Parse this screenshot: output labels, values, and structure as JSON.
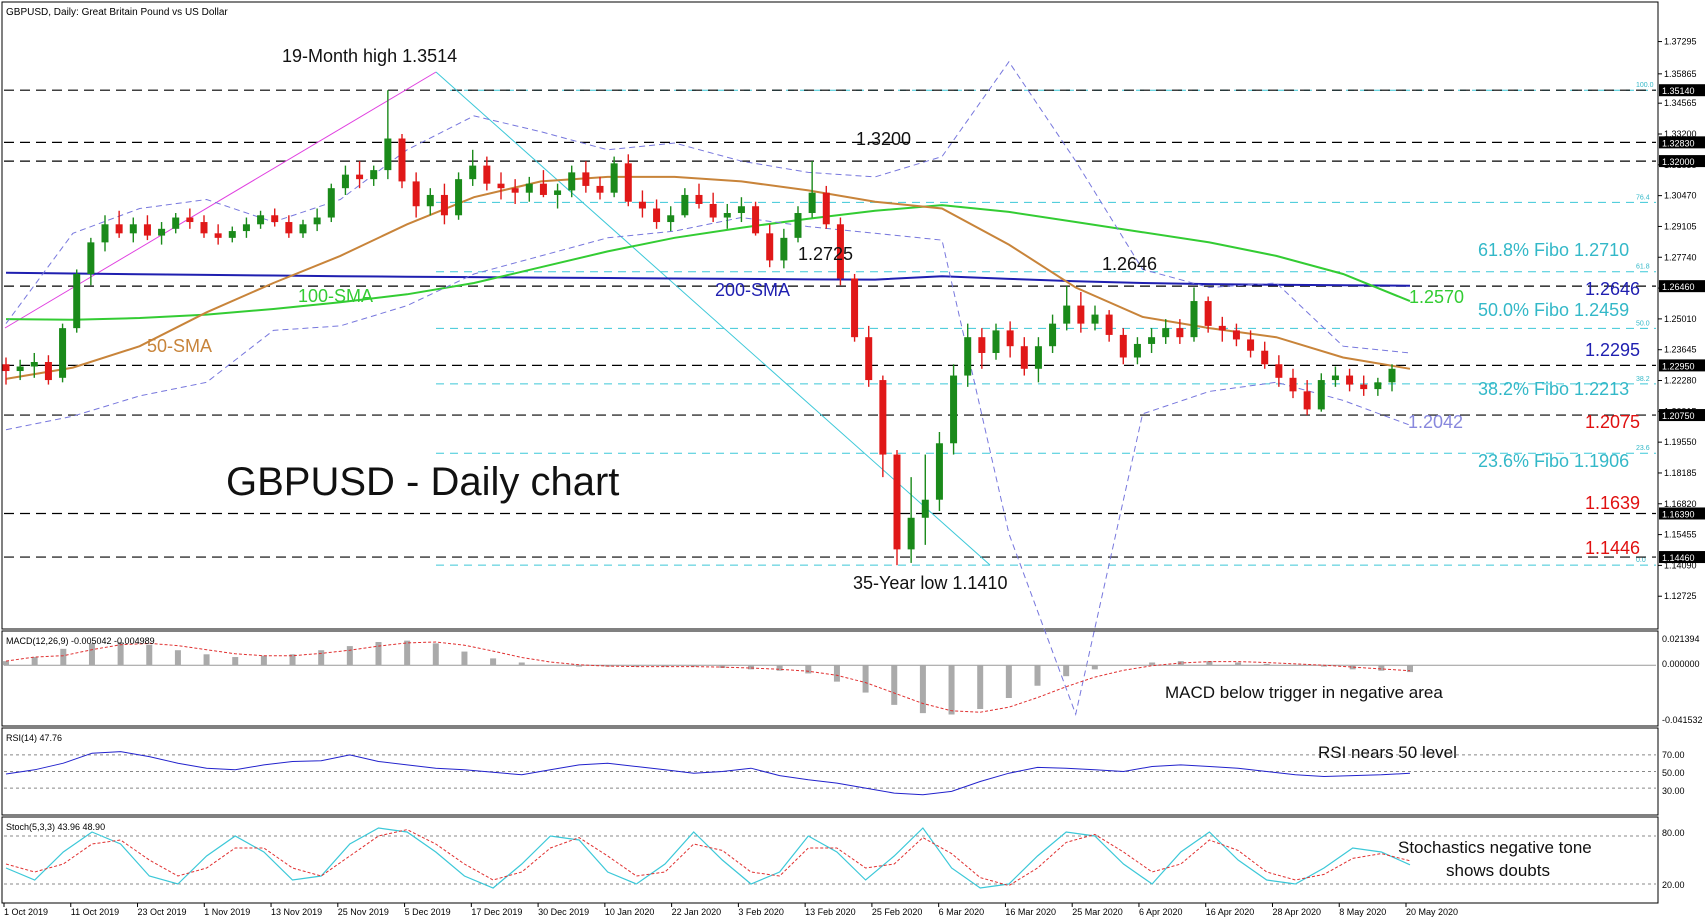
{
  "window": {
    "title": "GBPUSD, Daily:  Great Britain Pound vs US Dollar"
  },
  "chart_data": {
    "type": "line",
    "title": "GBPUSD - Daily chart",
    "xlabel": "",
    "ylabel": "",
    "ylim": [
      1.1145,
      1.3825
    ],
    "grid": false,
    "x_tick_labels": [
      "1 Oct 2019",
      "11 Oct 2019",
      "23 Oct 2019",
      "1 Nov 2019",
      "13 Nov 2019",
      "25 Nov 2019",
      "5 Dec 2019",
      "17 Dec 2019",
      "30 Dec 2019",
      "10 Jan 2020",
      "22 Jan 2020",
      "3 Feb 2020",
      "13 Feb 2020",
      "25 Feb 2020",
      "6 Mar 2020",
      "16 Mar 2020",
      "25 Mar 2020",
      "6 Apr 2020",
      "16 Apr 2020",
      "28 Apr 2020",
      "8 May 2020",
      "20 May 2020"
    ],
    "y_tick_labels": [
      "1.37295",
      "1.35865",
      "1.34565",
      "1.33200",
      "1.31835",
      "1.30470",
      "1.29105",
      "1.27740",
      "1.26375",
      "1.25010",
      "1.23645",
      "1.22280",
      "1.20915",
      "1.19550",
      "1.18185",
      "1.16820",
      "1.15455",
      "1.14090",
      "1.12725"
    ],
    "price_tags": [
      "1.35140",
      "1.32830",
      "1.32000",
      "1.26460",
      "1.22950",
      "1.20750",
      "1.16390",
      "1.14460"
    ],
    "horizontal_levels": [
      1.3514,
      1.3283,
      1.32,
      1.2646,
      1.2295,
      1.2075,
      1.1639,
      1.1446
    ],
    "fibonacci": {
      "levels": [
        {
          "pct": "100.0",
          "value": 1.3514
        },
        {
          "pct": "76.4",
          "value": 1.3017
        },
        {
          "pct": "61.8",
          "value": 1.271
        },
        {
          "pct": "50.0",
          "value": 1.2459
        },
        {
          "pct": "38.2",
          "value": 1.2213
        },
        {
          "pct": "23.6",
          "value": 1.1906
        },
        {
          "pct": "0.0",
          "value": 1.141
        }
      ],
      "tag_texts": [
        "100.0",
        "76.4",
        "61.8",
        "50.0",
        "38.2",
        "23.6",
        "0.0"
      ]
    },
    "series": [
      {
        "name": "200-SMA",
        "color": "#1f1fb0",
        "values": [
          1.2705,
          1.2702,
          1.2699,
          1.2696,
          1.2693,
          1.269,
          1.2688,
          1.2686,
          1.2684,
          1.2682,
          1.268,
          1.2678,
          1.2676,
          1.2675,
          1.269,
          1.2678,
          1.2668,
          1.266,
          1.2655,
          1.2652,
          1.265,
          1.2648
        ]
      },
      {
        "name": "100-SMA",
        "color": "#33cc33",
        "values": [
          1.25,
          1.2497,
          1.2505,
          1.252,
          1.2545,
          1.2575,
          1.261,
          1.266,
          1.273,
          1.28,
          1.286,
          1.2905,
          1.2945,
          1.298,
          1.3005,
          1.2975,
          1.293,
          1.2885,
          1.284,
          1.278,
          1.27,
          1.258
        ]
      },
      {
        "name": "50-SMA",
        "color": "#c8843a",
        "values": [
          1.2235,
          1.2285,
          1.238,
          1.253,
          1.266,
          1.278,
          1.292,
          1.304,
          1.311,
          1.313,
          1.313,
          1.311,
          1.307,
          1.302,
          1.299,
          1.283,
          1.264,
          1.251,
          1.246,
          1.242,
          1.233,
          1.228
        ]
      },
      {
        "name": "Bollinger upper",
        "color": "#7777dd",
        "values": [
          1.248,
          1.288,
          1.299,
          1.303,
          1.293,
          1.303,
          1.325,
          1.34,
          1.333,
          1.325,
          1.328,
          1.32,
          1.315,
          1.313,
          1.322,
          1.364,
          1.32,
          1.272,
          1.264,
          1.266,
          1.238,
          1.235
        ]
      },
      {
        "name": "Bollinger lower",
        "color": "#7777dd",
        "values": [
          1.201,
          1.207,
          1.216,
          1.222,
          1.245,
          1.247,
          1.256,
          1.27,
          1.278,
          1.286,
          1.289,
          1.295,
          1.291,
          1.288,
          1.285,
          1.155,
          1.075,
          1.208,
          1.218,
          1.222,
          1.214,
          1.203
        ]
      },
      {
        "name": "Close",
        "color": "#222222",
        "values": [
          1.229,
          1.243,
          1.29,
          1.294,
          1.289,
          1.293,
          1.314,
          1.305,
          1.315,
          1.307,
          1.31,
          1.3,
          1.298,
          1.286,
          1.296,
          1.162,
          1.217,
          1.242,
          1.254,
          1.247,
          1.227,
          1.227
        ]
      }
    ],
    "annotations": {
      "high": "19-Month high 1.3514",
      "low": "35-Year low 1.1410",
      "l1320": "1.3200",
      "l12725": "1.2725",
      "l12646": "1.2646",
      "sma200": "200-SMA",
      "sma100": "100-SMA",
      "sma50": "50-SMA",
      "fib618": "61.8% Fibo 1.2710",
      "fib500": "50.0% Fibo 1.2459",
      "fib382": "38.2% Fibo 1.2213",
      "fib236": "23.6% Fibo 1.1906",
      "r12646": "1.2646",
      "r12570": "1.2570",
      "r12295": "1.2295",
      "r12075": "1.2075",
      "r12042": "1.2042",
      "r11639": "1.1639",
      "r11446": "1.1446"
    },
    "panels": {
      "macd": {
        "header": "MACD(12,26,9) -0.005042 -0.004989",
        "ticks": [
          "0.021394",
          "0.000000",
          "-0.041532"
        ],
        "note": "MACD below trigger in negative area",
        "histogram": [
          0.003,
          0.006,
          0.012,
          0.016,
          0.017,
          0.015,
          0.011,
          0.008,
          0.006,
          0.007,
          0.008,
          0.011,
          0.014,
          0.017,
          0.018,
          0.016,
          0.01,
          0.005,
          0.002,
          0.0,
          -0.001,
          -0.001,
          -0.001,
          -0.001,
          -0.001,
          -0.002,
          -0.003,
          -0.004,
          -0.006,
          -0.012,
          -0.02,
          -0.029,
          -0.035,
          -0.036,
          -0.032,
          -0.024,
          -0.015,
          -0.008,
          -0.003,
          0.0,
          0.002,
          0.003,
          0.003,
          0.002,
          0.001,
          0.0,
          -0.001,
          -0.003,
          -0.004,
          -0.005
        ]
      },
      "rsi": {
        "header": "RSI(14) 47.76",
        "ticks": [
          "70.00",
          "50.00",
          "30.00"
        ],
        "note": "RSI nears 50 level",
        "values": [
          47,
          52,
          60,
          72,
          74,
          68,
          60,
          54,
          52,
          58,
          62,
          63,
          70,
          62,
          58,
          54,
          52,
          49,
          46,
          52,
          58,
          60,
          56,
          52,
          48,
          50,
          54,
          45,
          40,
          36,
          30,
          24,
          22,
          26,
          38,
          48,
          55,
          54,
          52,
          50,
          56,
          58,
          56,
          54,
          50,
          46,
          44,
          45,
          46,
          47.8
        ]
      },
      "stoch": {
        "header": "Stoch(5,3,3) 43.96 48.90",
        "ticks": [
          "80.00",
          "20.00"
        ],
        "note_line1": "Stochastics negative tone",
        "note_line2": "shows doubts",
        "k": [
          40,
          25,
          60,
          85,
          70,
          30,
          20,
          55,
          80,
          60,
          25,
          30,
          70,
          90,
          85,
          60,
          30,
          15,
          45,
          80,
          75,
          35,
          20,
          45,
          85,
          50,
          20,
          35,
          80,
          60,
          25,
          55,
          90,
          40,
          15,
          20,
          55,
          85,
          80,
          45,
          20,
          60,
          85,
          50,
          25,
          20,
          40,
          65,
          60,
          44
        ],
        "d": [
          45,
          35,
          45,
          70,
          75,
          50,
          30,
          40,
          65,
          65,
          40,
          30,
          55,
          80,
          88,
          70,
          45,
          25,
          35,
          65,
          78,
          55,
          30,
          35,
          70,
          62,
          35,
          30,
          65,
          65,
          40,
          45,
          78,
          58,
          28,
          18,
          40,
          72,
          82,
          60,
          35,
          45,
          75,
          62,
          35,
          25,
          32,
          52,
          58,
          49
        ]
      }
    }
  },
  "candles": [
    [
      1.23,
      1.233,
      1.221,
      1.227
    ],
    [
      1.227,
      1.232,
      1.223,
      1.229
    ],
    [
      1.229,
      1.235,
      1.224,
      1.231
    ],
    [
      1.231,
      1.234,
      1.221,
      1.223
    ],
    [
      1.224,
      1.248,
      1.222,
      1.246
    ],
    [
      1.246,
      1.272,
      1.244,
      1.27
    ],
    [
      1.27,
      1.286,
      1.265,
      1.284
    ],
    [
      1.284,
      1.296,
      1.28,
      1.292
    ],
    [
      1.292,
      1.298,
      1.286,
      1.288
    ],
    [
      1.288,
      1.295,
      1.284,
      1.292
    ],
    [
      1.292,
      1.296,
      1.285,
      1.287
    ],
    [
      1.287,
      1.293,
      1.283,
      1.29
    ],
    [
      1.29,
      1.297,
      1.288,
      1.295
    ],
    [
      1.295,
      1.299,
      1.29,
      1.293
    ],
    [
      1.293,
      1.296,
      1.286,
      1.288
    ],
    [
      1.288,
      1.292,
      1.283,
      1.286
    ],
    [
      1.286,
      1.291,
      1.284,
      1.289
    ],
    [
      1.289,
      1.295,
      1.286,
      1.292
    ],
    [
      1.292,
      1.298,
      1.29,
      1.296
    ],
    [
      1.296,
      1.299,
      1.291,
      1.293
    ],
    [
      1.293,
      1.296,
      1.286,
      1.288
    ],
    [
      1.288,
      1.294,
      1.286,
      1.292
    ],
    [
      1.292,
      1.299,
      1.289,
      1.295
    ],
    [
      1.295,
      1.31,
      1.293,
      1.308
    ],
    [
      1.308,
      1.318,
      1.305,
      1.314
    ],
    [
      1.314,
      1.32,
      1.308,
      1.312
    ],
    [
      1.312,
      1.318,
      1.309,
      1.316
    ],
    [
      1.316,
      1.3514,
      1.312,
      1.33
    ],
    [
      1.33,
      1.332,
      1.308,
      1.311
    ],
    [
      1.311,
      1.315,
      1.295,
      1.3
    ],
    [
      1.3,
      1.308,
      1.296,
      1.305
    ],
    [
      1.305,
      1.31,
      1.292,
      1.296
    ],
    [
      1.296,
      1.315,
      1.294,
      1.312
    ],
    [
      1.312,
      1.325,
      1.309,
      1.318
    ],
    [
      1.318,
      1.322,
      1.307,
      1.31
    ],
    [
      1.31,
      1.315,
      1.303,
      1.308
    ],
    [
      1.308,
      1.312,
      1.301,
      1.306
    ],
    [
      1.306,
      1.313,
      1.302,
      1.31
    ],
    [
      1.31,
      1.316,
      1.304,
      1.305
    ],
    [
      1.305,
      1.31,
      1.299,
      1.307
    ],
    [
      1.307,
      1.318,
      1.304,
      1.315
    ],
    [
      1.315,
      1.32,
      1.306,
      1.309
    ],
    [
      1.309,
      1.313,
      1.303,
      1.306
    ],
    [
      1.306,
      1.322,
      1.304,
      1.319
    ],
    [
      1.319,
      1.323,
      1.3,
      1.302
    ],
    [
      1.302,
      1.307,
      1.295,
      1.299
    ],
    [
      1.299,
      1.303,
      1.29,
      1.293
    ],
    [
      1.293,
      1.3,
      1.289,
      1.296
    ],
    [
      1.296,
      1.308,
      1.295,
      1.305
    ],
    [
      1.305,
      1.31,
      1.299,
      1.301
    ],
    [
      1.301,
      1.306,
      1.293,
      1.295
    ],
    [
      1.295,
      1.301,
      1.29,
      1.297
    ],
    [
      1.297,
      1.304,
      1.293,
      1.3
    ],
    [
      1.3,
      1.302,
      1.287,
      1.288
    ],
    [
      1.288,
      1.292,
      1.273,
      1.276
    ],
    [
      1.276,
      1.29,
      1.2725,
      1.286
    ],
    [
      1.286,
      1.3,
      1.284,
      1.297
    ],
    [
      1.297,
      1.32,
      1.295,
      1.306
    ],
    [
      1.306,
      1.309,
      1.29,
      1.292
    ],
    [
      1.292,
      1.295,
      1.265,
      1.268
    ],
    [
      1.268,
      1.27,
      1.24,
      1.242
    ],
    [
      1.242,
      1.247,
      1.22,
      1.223
    ],
    [
      1.223,
      1.225,
      1.18,
      1.19
    ],
    [
      1.19,
      1.192,
      1.141,
      1.148
    ],
    [
      1.148,
      1.18,
      1.142,
      1.162
    ],
    [
      1.162,
      1.19,
      1.15,
      1.17
    ],
    [
      1.17,
      1.2,
      1.165,
      1.195
    ],
    [
      1.195,
      1.23,
      1.19,
      1.225
    ],
    [
      1.225,
      1.248,
      1.22,
      1.242
    ],
    [
      1.242,
      1.246,
      1.228,
      1.235
    ],
    [
      1.235,
      1.248,
      1.232,
      1.245
    ],
    [
      1.245,
      1.249,
      1.233,
      1.238
    ],
    [
      1.238,
      1.242,
      1.225,
      1.228
    ],
    [
      1.228,
      1.242,
      1.222,
      1.238
    ],
    [
      1.238,
      1.252,
      1.235,
      1.248
    ],
    [
      1.248,
      1.2646,
      1.245,
      1.256
    ],
    [
      1.256,
      1.262,
      1.244,
      1.248
    ],
    [
      1.248,
      1.256,
      1.245,
      1.252
    ],
    [
      1.252,
      1.254,
      1.24,
      1.243
    ],
    [
      1.243,
      1.246,
      1.23,
      1.233
    ],
    [
      1.233,
      1.242,
      1.23,
      1.239
    ],
    [
      1.239,
      1.246,
      1.235,
      1.242
    ],
    [
      1.242,
      1.25,
      1.239,
      1.246
    ],
    [
      1.246,
      1.25,
      1.239,
      1.242
    ],
    [
      1.242,
      1.264,
      1.24,
      1.258
    ],
    [
      1.258,
      1.26,
      1.244,
      1.247
    ],
    [
      1.247,
      1.251,
      1.24,
      1.245
    ],
    [
      1.245,
      1.248,
      1.238,
      1.241
    ],
    [
      1.241,
      1.245,
      1.233,
      1.236
    ],
    [
      1.236,
      1.24,
      1.228,
      1.23
    ],
    [
      1.23,
      1.234,
      1.22,
      1.224
    ],
    [
      1.224,
      1.228,
      1.215,
      1.218
    ],
    [
      1.218,
      1.223,
      1.2075,
      1.21
    ],
    [
      1.21,
      1.226,
      1.209,
      1.223
    ],
    [
      1.223,
      1.229,
      1.22,
      1.225
    ],
    [
      1.225,
      1.228,
      1.218,
      1.221
    ],
    [
      1.221,
      1.225,
      1.216,
      1.219
    ],
    [
      1.219,
      1.224,
      1.216,
      1.222
    ],
    [
      1.222,
      1.23,
      1.218,
      1.228
    ]
  ]
}
